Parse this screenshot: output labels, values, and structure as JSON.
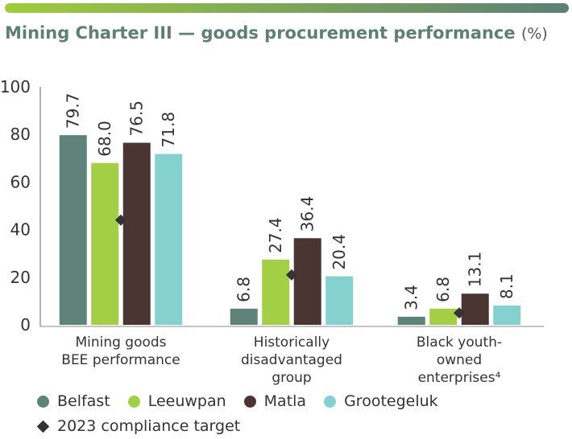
{
  "header": {
    "title": "Mining Charter III — goods procurement performance",
    "unit": "(%)"
  },
  "colors": {
    "bar_gradient_start": "#9fcc3b",
    "bar_gradient_end": "#5b8076",
    "title": "#5d7f76",
    "target_marker": "#333333"
  },
  "chart_data": {
    "type": "bar",
    "title": "Mining Charter III — goods procurement performance (%)",
    "xlabel": "",
    "ylabel": "",
    "ylim": [
      0,
      100
    ],
    "yticks": [
      0,
      20,
      40,
      60,
      80,
      100
    ],
    "ytick_labels": [
      "0",
      "20",
      "40",
      "60",
      "80",
      "100"
    ],
    "grid": false,
    "legend_position": "bottom-left",
    "categories": [
      [
        "Mining goods",
        "BEE performance"
      ],
      [
        "Historically",
        "disadvantaged",
        "group"
      ],
      [
        "Black youth-",
        "owned",
        "enterprises⁴"
      ]
    ],
    "series": [
      {
        "name": "Belfast",
        "color": "#5f8378",
        "values": [
          79.7,
          6.8,
          3.4
        ],
        "labels": [
          "79.7",
          "6.8",
          "3.4"
        ]
      },
      {
        "name": "Leeuwpan",
        "color": "#a3cf45",
        "values": [
          68.0,
          27.4,
          6.8
        ],
        "labels": [
          "68.0",
          "27.4",
          "6.8"
        ]
      },
      {
        "name": "Matla",
        "color": "#4a3532",
        "values": [
          76.5,
          36.4,
          13.1
        ],
        "labels": [
          "76.5",
          "36.4",
          "13.1"
        ]
      },
      {
        "name": "Grootegeluk",
        "color": "#84d1d0",
        "values": [
          71.8,
          20.4,
          8.1
        ],
        "labels": [
          "71.8",
          "20.4",
          "8.1"
        ]
      }
    ],
    "target": {
      "name": "2023 compliance target",
      "values": [
        44,
        21,
        5
      ]
    }
  }
}
